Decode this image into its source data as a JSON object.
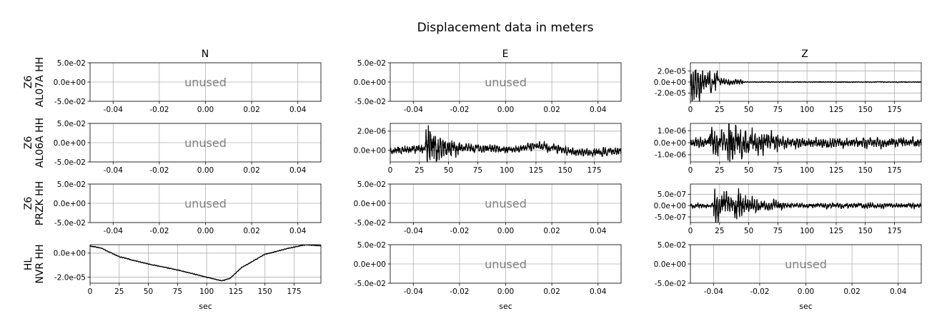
{
  "figure": {
    "title": "Displacement data in meters",
    "columns": [
      "N",
      "E",
      "Z"
    ],
    "rows": [
      {
        "network": "Z6",
        "station": "AL07A HH"
      },
      {
        "network": "Z6",
        "station": "AL06A HH"
      },
      {
        "network": "Z6",
        "station": "PRZK HH"
      },
      {
        "network": "HL",
        "station": "NVR HH"
      }
    ],
    "unused_label": "unused",
    "xlabel": "sec"
  },
  "chart_data": {
    "type": "line",
    "grid": true,
    "layout": "4 rows x 3 columns of subplots",
    "panels": [
      {
        "row": 0,
        "col": 0,
        "unused": true,
        "xlim": [
          -0.05,
          0.05
        ],
        "ylim": [
          -0.05,
          0.05
        ],
        "xticks": [
          "-0.04",
          "-0.02",
          "0.00",
          "0.02",
          "0.04"
        ],
        "yticks": [
          "5.0e-02",
          "0.0e+00",
          "-5.0e-02"
        ]
      },
      {
        "row": 0,
        "col": 1,
        "unused": true,
        "xlim": [
          -0.05,
          0.05
        ],
        "ylim": [
          -0.05,
          0.05
        ],
        "xticks": [
          "-0.04",
          "-0.02",
          "0.00",
          "0.02",
          "0.04"
        ],
        "yticks": [
          "5.0e-02",
          "0.0e+00",
          "-5.0e-02"
        ]
      },
      {
        "row": 0,
        "col": 2,
        "unused": false,
        "xlim": [
          0,
          198
        ],
        "ylim": [
          -3.5e-05,
          3.5e-05
        ],
        "xticks": [
          "0",
          "25",
          "50",
          "75",
          "100",
          "125",
          "150",
          "175"
        ],
        "yticks": [
          "2.0e-05",
          "0.0e+00",
          "-2.0e-05"
        ],
        "signal": {
          "seed": 11,
          "noise": 6e-07,
          "bursts": [
            {
              "t0": 0,
              "t1": 24,
              "amp": 2.6e-05
            },
            {
              "t0": 24,
              "t1": 45,
              "amp": 5.5e-06
            }
          ]
        }
      },
      {
        "row": 1,
        "col": 0,
        "unused": true,
        "xlim": [
          -0.05,
          0.05
        ],
        "ylim": [
          -0.05,
          0.05
        ],
        "xticks": [
          "-0.04",
          "-0.02",
          "0.00",
          "0.02",
          "0.04"
        ],
        "yticks": [
          "5.0e-02",
          "0.0e+00",
          "-5.0e-02"
        ]
      },
      {
        "row": 1,
        "col": 1,
        "unused": false,
        "xlim": [
          0,
          198
        ],
        "ylim": [
          -1.2e-06,
          2.8e-06
        ],
        "xticks": [
          "0",
          "25",
          "50",
          "75",
          "100",
          "125",
          "150",
          "175"
        ],
        "yticks": [
          "2.0e-06",
          "0.0e+00"
        ],
        "signal": {
          "seed": 23,
          "noise": 3.5e-07,
          "trend": [
            [
              0,
              0.0
            ],
            [
              30,
              2e-07
            ],
            [
              60,
              3e-07
            ],
            [
              100,
              1e-07
            ],
            [
              125,
              5e-07
            ],
            [
              150,
              0.0
            ],
            [
              175,
              -3e-07
            ],
            [
              198,
              0.0
            ]
          ],
          "bursts": [
            {
              "t0": 30,
              "t1": 42,
              "amp": 1.8e-06
            },
            {
              "t0": 42,
              "t1": 60,
              "amp": 7e-07
            }
          ]
        }
      },
      {
        "row": 1,
        "col": 2,
        "unused": false,
        "xlim": [
          0,
          198
        ],
        "ylim": [
          -1.6e-06,
          1.6e-06
        ],
        "xticks": [
          "0",
          "25",
          "50",
          "75",
          "100",
          "125",
          "150",
          "175"
        ],
        "yticks": [
          "1.0e-06",
          "0.0e+00",
          "-1.0e-06"
        ],
        "signal": {
          "seed": 37,
          "noise": 3.5e-07,
          "bursts": [
            {
              "t0": 15,
              "t1": 32,
              "amp": 7e-07
            },
            {
              "t0": 32,
              "t1": 42,
              "amp": 1.5e-06
            },
            {
              "t0": 42,
              "t1": 75,
              "amp": 7e-07
            }
          ]
        }
      },
      {
        "row": 2,
        "col": 0,
        "unused": true,
        "xlim": [
          -0.05,
          0.05
        ],
        "ylim": [
          -0.05,
          0.05
        ],
        "xticks": [
          "-0.04",
          "-0.02",
          "0.00",
          "0.02",
          "0.04"
        ],
        "yticks": [
          "5.0e-02",
          "0.0e+00",
          "-5.0e-02"
        ]
      },
      {
        "row": 2,
        "col": 1,
        "unused": true,
        "xlim": [
          -0.05,
          0.05
        ],
        "ylim": [
          -0.05,
          0.05
        ],
        "xticks": [
          "-0.04",
          "-0.02",
          "0.00",
          "0.02",
          "0.04"
        ],
        "yticks": [
          "5.0e-02",
          "0.0e+00",
          "-5.0e-02"
        ]
      },
      {
        "row": 2,
        "col": 2,
        "unused": false,
        "xlim": [
          0,
          198
        ],
        "ylim": [
          -7.5e-07,
          9.5e-07
        ],
        "xticks": [
          "0",
          "25",
          "50",
          "75",
          "100",
          "125",
          "150",
          "175"
        ],
        "yticks": [
          "5.0e-07",
          "0.0e+00",
          "-5.0e-07"
        ],
        "signal": {
          "seed": 51,
          "noise": 9e-08,
          "bursts": [
            {
              "t0": 20,
              "t1": 30,
              "amp": 6.5e-07
            },
            {
              "t0": 30,
              "t1": 38,
              "amp": 4e-07
            },
            {
              "t0": 38,
              "t1": 48,
              "amp": 6.5e-07
            },
            {
              "t0": 48,
              "t1": 80,
              "amp": 2e-07
            }
          ]
        }
      },
      {
        "row": 3,
        "col": 0,
        "unused": false,
        "xlim": [
          0,
          198
        ],
        "ylim": [
          -2.5e-05,
          7e-06
        ],
        "xticks": [
          "0",
          "25",
          "50",
          "75",
          "100",
          "125",
          "150",
          "175"
        ],
        "yticks": [
          "0.0e+00",
          "-2.0e-05"
        ],
        "xlabel": "sec",
        "signal": {
          "seed": 67,
          "noise": 2.5e-07,
          "trend": [
            [
              0,
              6e-06
            ],
            [
              10,
              4e-06
            ],
            [
              25,
              -3e-06
            ],
            [
              50,
              -9e-06
            ],
            [
              75,
              -1.4e-05
            ],
            [
              100,
              -2e-05
            ],
            [
              113,
              -2.3e-05
            ],
            [
              120,
              -2.1e-05
            ],
            [
              130,
              -1.2e-05
            ],
            [
              150,
              -1e-06
            ],
            [
              170,
              4e-06
            ],
            [
              185,
              7e-06
            ],
            [
              198,
              6e-06
            ]
          ]
        }
      },
      {
        "row": 3,
        "col": 1,
        "unused": true,
        "xlim": [
          -0.05,
          0.05
        ],
        "ylim": [
          -0.05,
          0.05
        ],
        "xticks": [
          "-0.04",
          "-0.02",
          "0.00",
          "0.02",
          "0.04"
        ],
        "yticks": [
          "5.0e-02",
          "0.0e+00",
          "-5.0e-02"
        ],
        "xlabel": "sec"
      },
      {
        "row": 3,
        "col": 2,
        "unused": true,
        "xlim": [
          -0.05,
          0.05
        ],
        "ylim": [
          -0.05,
          0.05
        ],
        "xticks": [
          "-0.04",
          "-0.02",
          "0.00",
          "0.02",
          "0.04"
        ],
        "yticks": [
          "5.0e-02",
          "0.0e+00",
          "-5.0e-02"
        ],
        "xlabel": "sec"
      }
    ]
  }
}
